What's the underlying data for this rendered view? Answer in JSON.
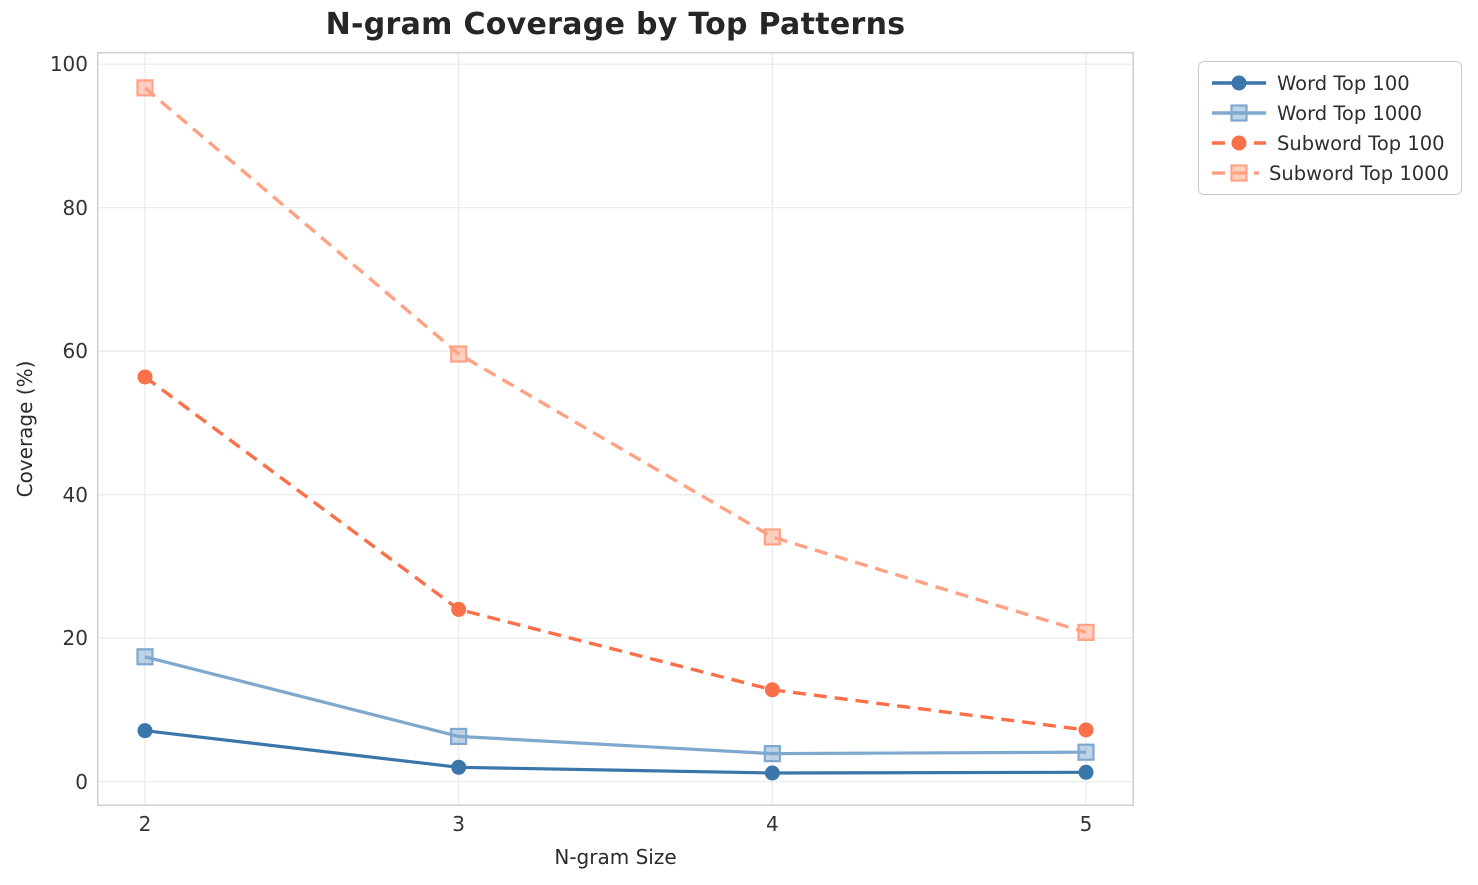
{
  "chart_data": {
    "type": "line",
    "title": "N-gram Coverage by Top Patterns",
    "xlabel": "N-gram Size",
    "ylabel": "Coverage (%)",
    "x": [
      2,
      3,
      4,
      5
    ],
    "x_tick_labels": [
      "2",
      "3",
      "4",
      "5"
    ],
    "y_ticks": [
      0,
      20,
      40,
      60,
      80,
      100
    ],
    "y_tick_labels": [
      "0",
      "20",
      "40",
      "60",
      "80",
      "100"
    ],
    "xlim": [
      1.847,
      5.153
    ],
    "ylim": [
      -3.4,
      101.7
    ],
    "grid": true,
    "legend_position": "upper right outside axes",
    "series": [
      {
        "name": "Word Top 100",
        "color": "#3A76A9",
        "marker": "circle",
        "line_style": "solid",
        "values": [
          7.1,
          2.0,
          1.2,
          1.3
        ]
      },
      {
        "name": "Word Top 1000",
        "color": "#7FA8CE",
        "marker": "square",
        "line_style": "solid",
        "values": [
          17.4,
          6.3,
          3.9,
          4.1
        ]
      },
      {
        "name": "Subword Top 100",
        "color": "#FA7049",
        "marker": "circle",
        "line_style": "dashed",
        "values": [
          56.4,
          24.0,
          12.8,
          7.2
        ]
      },
      {
        "name": "Subword Top 1000",
        "color": "#FFA284",
        "marker": "square",
        "line_style": "dashed",
        "values": [
          96.7,
          59.6,
          34.1,
          20.8
        ]
      }
    ],
    "colors": {
      "grid": "#ececec",
      "spine": "#cfcfcf",
      "tick_text": "#333333",
      "title_text": "#262626"
    }
  }
}
